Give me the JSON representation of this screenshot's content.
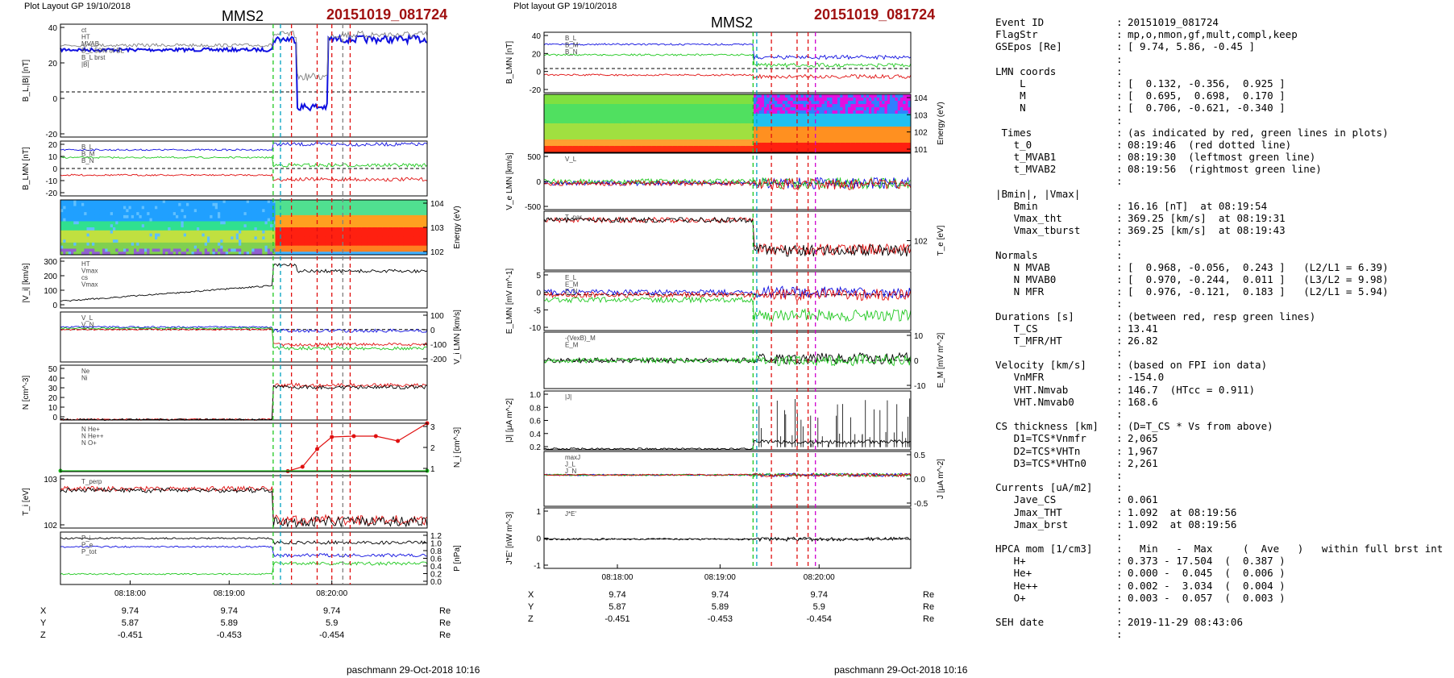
{
  "left_header": {
    "layout_label": "Plot Layout GP 19/10/2018",
    "spacecraft": "MMS2",
    "event": "20151019_081724",
    "credit": "paschmann 29-Oct-2018 10:16"
  },
  "middle_header": {
    "layout_label": "Plot layout GP 19/10/2018",
    "spacecraft": "MMS2",
    "event": "20151019_081724",
    "credit": "paschmann 29-Oct-2018 10:16"
  },
  "colors": {
    "blue": "#1010e0",
    "green": "#20c820",
    "red": "#e01010",
    "black": "#000000",
    "gray": "#808080",
    "magenta": "#d000d0",
    "cyan": "#00a0c0",
    "title_red": "#a01010"
  },
  "chart_data": [
    {
      "type": "line",
      "layout": "multi-panel",
      "x_ticks": [
        "08:18:00",
        "08:19:00",
        "08:20:00"
      ],
      "panels": [
        {
          "id": "bl",
          "ylabel": "B_L,|B| [nT]",
          "yticks": [
            "40",
            "20",
            "0",
            "-20"
          ],
          "ylim": [
            -30,
            45
          ],
          "legend": [
            "ct",
            "HT",
            "MVAB",
            "B_L 50% of BL",
            "B_L brst",
            "|B|"
          ],
          "series": [
            {
              "name": "B_L",
              "color": "blue",
              "start": 28,
              "end": 35,
              "dip": -10
            },
            {
              "name": "|B|",
              "color": "gray",
              "start": 31,
              "end": 38,
              "dip": 10
            }
          ]
        },
        {
          "id": "blmn",
          "ylabel": "B_LMN [nT]",
          "yticks": [
            "20",
            "10",
            "0",
            "-10",
            "-20"
          ],
          "ylim": [
            -25,
            25
          ],
          "legend": [
            "B_L",
            "B_M",
            "B_N"
          ],
          "series": [
            {
              "name": "B_L",
              "color": "blue",
              "start": 17,
              "end": 22
            },
            {
              "name": "B_M",
              "color": "green",
              "start": 10,
              "end": 3
            },
            {
              "name": "B_N",
              "color": "red",
              "start": -6,
              "end": -10
            }
          ]
        },
        {
          "id": "spec",
          "type": "heatmap",
          "ylabel": "Energy (eV)",
          "yticks": [
            "10^4",
            "10^3",
            "10^2"
          ]
        },
        {
          "id": "vi",
          "ylabel": "|V_i| [km/s]",
          "yticks": [
            "300",
            "200",
            "100",
            "0"
          ],
          "ylim": [
            0,
            380
          ],
          "legend": [
            "HT",
            "Vmax",
            "cs",
            "Vmax"
          ],
          "series": [
            {
              "name": "|V_i|",
              "color": "black",
              "start": 50,
              "end": 170,
              "jump": 330,
              "after": 280
            }
          ]
        },
        {
          "id": "vilmn",
          "ylabel": "V_i LMN [km/s]",
          "yticks": [
            "100",
            "0",
            "-100",
            "-200"
          ],
          "ylim": [
            -260,
            140
          ],
          "legend": [
            "V_L",
            "V_N"
          ],
          "series": [
            {
              "name": "V_L",
              "color": "blue",
              "start": 20,
              "end": -10
            },
            {
              "name": "V_N",
              "color": "red",
              "start": 0,
              "end": -120
            },
            {
              "name": "V_M",
              "color": "green",
              "start": 10,
              "end": -150
            }
          ]
        },
        {
          "id": "n",
          "ylabel": "N [cm^-3]",
          "yticks": [
            "50",
            "40",
            "30",
            "20",
            "10",
            "0"
          ],
          "ylim": [
            0,
            55
          ],
          "legend": [
            "Ne",
            "Ni"
          ],
          "series": [
            {
              "name": "Ne",
              "color": "red",
              "start": 0.5,
              "end": 35
            },
            {
              "name": "Ni",
              "color": "black",
              "start": 0.5,
              "end": 33
            }
          ]
        },
        {
          "id": "nhpca",
          "ylabel": "N_i [cm^-3]",
          "yticks": [
            "3",
            "2",
            "1"
          ],
          "ylim": [
            0,
            3
          ],
          "legend": [
            "N  He+",
            "N  He++",
            "N  O+"
          ],
          "series": [
            {
              "name": "N He++",
              "color": "red",
              "points": [
                [
                  0.62,
                  0.03
                ],
                [
                  0.66,
                  0.3
                ],
                [
                  0.7,
                  1.4
                ],
                [
                  0.74,
                  2.15
                ],
                [
                  0.8,
                  2.2
                ],
                [
                  0.86,
                  2.2
                ],
                [
                  0.92,
                  1.9
                ],
                [
                  1.0,
                  3.0
                ]
              ]
            },
            {
              "name": "N He+",
              "color": "green",
              "points": [
                [
                  0,
                  0.05
                ],
                [
                  1,
                  0.05
                ]
              ]
            }
          ]
        },
        {
          "id": "ti",
          "ylabel": "T_i [eV]",
          "yticks": [
            "10^3",
            "10^2"
          ],
          "legend": [
            "T_perp"
          ],
          "series": [
            {
              "name": "T_par",
              "color": "red",
              "start": 0.75,
              "end": 0.15
            },
            {
              "name": "T_perp",
              "color": "black",
              "start": 0.72,
              "end": 0.12
            }
          ]
        },
        {
          "id": "p",
          "ylabel": "P [nPa]",
          "yticks": [
            "1.2",
            "1.0",
            "0.8",
            "0.6",
            "0.4",
            "0.2",
            "0.0"
          ],
          "ylim": [
            0,
            1.25
          ],
          "legend": [
            "P_i",
            "P_e",
            "P_tot"
          ],
          "series": [
            {
              "name": "P_B",
              "color": "blue",
              "start": 0.9,
              "end": 0.7
            },
            {
              "name": "P_i",
              "color": "green",
              "start": 0.25,
              "end": 0.5
            },
            {
              "name": "P_tot",
              "color": "black",
              "start": 1.1,
              "end": 1.0
            }
          ]
        }
      ],
      "position_table": {
        "rows": [
          {
            "label": "X",
            "values": [
              "9.74",
              "9.74",
              "9.74"
            ],
            "unit": "Re"
          },
          {
            "label": "Y",
            "values": [
              "5.87",
              "5.89",
              "5.9"
            ],
            "unit": "Re"
          },
          {
            "label": "Z",
            "values": [
              "-0.451",
              "-0.453",
              "-0.454"
            ],
            "unit": "Re"
          }
        ]
      }
    },
    {
      "type": "line",
      "layout": "multi-panel",
      "x_ticks": [
        "08:18:00",
        "08:19:00",
        "08:20:00"
      ],
      "panels": [
        {
          "id": "bm",
          "ylabel": "B_LMN [nT]",
          "yticks": [
            "40",
            "20",
            "0",
            "-20"
          ],
          "ylim": [
            -30,
            45
          ],
          "legend": [
            "B_L",
            "B_M",
            "B_N"
          ],
          "series": [
            {
              "name": "B_L",
              "color": "blue",
              "start": 30,
              "end": 14
            },
            {
              "name": "B_M",
              "color": "green",
              "start": 17,
              "end": 4
            },
            {
              "name": "B_N",
              "color": "red",
              "start": -8,
              "end": -10
            }
          ]
        },
        {
          "id": "espec",
          "type": "heatmap",
          "ylabel": "Energy (eV)",
          "yticks": [
            "10^4",
            "10^3",
            "10^2",
            "10^1"
          ]
        },
        {
          "id": "ve",
          "ylabel": "V_e LMN [km/s]",
          "yticks": [
            "500",
            "0",
            "-500"
          ],
          "ylim": [
            -750,
            850
          ],
          "legend": [
            "V_L"
          ],
          "series": [
            {
              "name": "V_L",
              "color": "blue",
              "start": 0,
              "end": 0
            },
            {
              "name": "V_M",
              "color": "green",
              "start": 50,
              "end": 0
            },
            {
              "name": "V_N",
              "color": "red",
              "start": 0,
              "end": -30
            }
          ]
        },
        {
          "id": "te",
          "ylabel": "T_e [eV]",
          "yticks": [
            "10^2"
          ],
          "legend": [
            "T_par"
          ],
          "series": [
            {
              "name": "T_par",
              "color": "red",
              "start": 0.85,
              "end": 0.35
            },
            {
              "name": "T_perp",
              "color": "black",
              "start": 0.85,
              "end": 0.33
            }
          ]
        },
        {
          "id": "e",
          "ylabel": "E_LMN [mV m^-1]",
          "yticks": [
            "5",
            "0",
            "-5",
            "-10"
          ],
          "ylim": [
            -14,
            9
          ],
          "legend": [
            "E_L",
            "E_M",
            "E_N"
          ],
          "series": [
            {
              "name": "E_L",
              "color": "blue",
              "start": 1,
              "end": 1
            },
            {
              "name": "E_M",
              "color": "green",
              "start": -2,
              "end": -8
            },
            {
              "name": "E_N",
              "color": "red",
              "start": 0,
              "end": 0
            }
          ]
        },
        {
          "id": "em",
          "ylabel": "E_M [mV m^-2]",
          "yticks": [
            "10",
            "0",
            "-10"
          ],
          "ylim": [
            -15,
            15
          ],
          "legend": [
            "-(VexB)_M",
            "E_M"
          ],
          "series": [
            {
              "name": "-(VexB)_M",
              "color": "black",
              "start": 0,
              "end": 1
            },
            {
              "name": "E_M",
              "color": "green",
              "start": 0,
              "end": 0
            }
          ]
        },
        {
          "id": "j",
          "ylabel": "|J| [μA m^-2]",
          "yticks": [
            "1.0",
            "0.8",
            "0.6",
            "0.4",
            "0.2"
          ],
          "ylim": [
            0,
            1.1
          ],
          "legend": [
            "|J|"
          ],
          "series": [
            {
              "name": "|J|",
              "color": "black",
              "start": 0.02,
              "end": 0.15
            }
          ]
        },
        {
          "id": "jlmn",
          "ylabel": "J [μA m^-2]",
          "yticks": [
            "0.5",
            "0.0",
            "-0.5"
          ],
          "ylim": [
            -0.8,
            0.6
          ],
          "legend": [
            "maxJ",
            "J_L",
            "J_N"
          ],
          "series": [
            {
              "name": "J_L",
              "color": "blue",
              "start": 0,
              "end": 0
            },
            {
              "name": "J_M",
              "color": "green",
              "start": 0,
              "end": 0
            },
            {
              "name": "J_N",
              "color": "red",
              "start": 0,
              "end": 0
            }
          ]
        },
        {
          "id": "je",
          "ylabel": "J*E' [nW m^-3]",
          "yticks": [
            "1",
            "0",
            "-1"
          ],
          "ylim": [
            -1.4,
            1.5
          ],
          "legend": [
            "J*E'"
          ],
          "series": [
            {
              "name": "J*E'",
              "color": "black",
              "start": 0,
              "end": 0
            }
          ]
        }
      ],
      "position_table": {
        "rows": [
          {
            "label": "X",
            "values": [
              "9.74",
              "9.74",
              "9.74"
            ],
            "unit": "Re"
          },
          {
            "label": "Y",
            "values": [
              "5.87",
              "5.89",
              "5.9"
            ],
            "unit": "Re"
          },
          {
            "label": "Z",
            "values": [
              "-0.451",
              "-0.453",
              "-0.454"
            ],
            "unit": "Re"
          }
        ]
      }
    }
  ],
  "info": [
    [
      "Event ID",
      ":",
      "20151019_081724"
    ],
    [
      "FlagStr",
      ":",
      "mp,o,nmon,gf,mult,compl,keep"
    ],
    [
      "GSEpos [Re]",
      ":",
      "[ 9.74, 5.86, -0.45 ]"
    ],
    [
      "",
      ":",
      ""
    ],
    [
      "LMN coords",
      ":",
      ""
    ],
    [
      "    L",
      ":",
      "[  0.132, -0.356,  0.925 ]"
    ],
    [
      "    M",
      ":",
      "[  0.695,  0.698,  0.170 ]"
    ],
    [
      "    N",
      ":",
      "[  0.706, -0.621, -0.340 ]"
    ],
    [
      "",
      ":",
      ""
    ],
    [
      " Times",
      ":",
      "(as indicated by red, green lines in plots)"
    ],
    [
      "   t_0",
      ":",
      "08:19:46  (red dotted line)"
    ],
    [
      "   t_MVAB1",
      ":",
      "08:19:30  (leftmost green line)"
    ],
    [
      "   t_MVAB2",
      ":",
      "08:19:56  (rightmost green line)"
    ],
    [
      "",
      ":",
      ""
    ],
    [
      "|Bmin|, |Vmax|",
      "",
      ""
    ],
    [
      "   Bmin",
      ":",
      "16.16 [nT]  at 08:19:54"
    ],
    [
      "   Vmax_tht",
      ":",
      "369.25 [km/s]  at 08:19:31"
    ],
    [
      "   Vmax_tburst",
      ":",
      "369.25 [km/s]  at 08:19:43"
    ],
    [
      "",
      ":",
      ""
    ],
    [
      "Normals",
      ":",
      ""
    ],
    [
      "   N MVAB",
      ":",
      "[  0.968, -0.056,  0.243 ]   (L2/L1 = 6.39)"
    ],
    [
      "   N MVAB0",
      ":",
      "[  0.970, -0.244,  0.011 ]   (L3/L2 = 9.98)"
    ],
    [
      "   N MFR",
      ":",
      "[  0.976, -0.121,  0.183 ]   (L2/L1 = 5.94)"
    ],
    [
      "",
      ":",
      ""
    ],
    [
      "Durations [s]",
      ":",
      "(between red, resp green lines)"
    ],
    [
      "   T_CS",
      ":",
      "13.41"
    ],
    [
      "   T_MFR/HT",
      ":",
      "26.82"
    ],
    [
      "",
      ":",
      ""
    ],
    [
      "Velocity [km/s]",
      ":",
      "(based on FPI ion data)"
    ],
    [
      "   VnMFR",
      ":",
      "-154.0"
    ],
    [
      "   VHT.Nmvab",
      ":",
      "146.7  (HTcc = 0.911)"
    ],
    [
      "   VHT.Nmvab0",
      ":",
      "168.6"
    ],
    [
      "",
      ":",
      ""
    ],
    [
      "CS thickness [km]",
      ":",
      "(D=T_CS * Vs from above)"
    ],
    [
      "   D1=TCS*Vnmfr",
      ":",
      "2,065"
    ],
    [
      "   D2=TCS*VHTn",
      ":",
      "1,967"
    ],
    [
      "   D3=TCS*VHTn0",
      ":",
      "2,261"
    ],
    [
      "",
      ":",
      ""
    ],
    [
      "Currents [uA/m2]",
      ":",
      ""
    ],
    [
      "   Jave_CS",
      ":",
      "0.061"
    ],
    [
      "   Jmax_THT",
      ":",
      "1.092  at 08:19:56"
    ],
    [
      "   Jmax_brst",
      ":",
      "1.092  at 08:19:56"
    ],
    [
      "",
      ":",
      ""
    ],
    [
      "HPCA mom [1/cm3]",
      ":",
      "  Min   -  Max     (  Ave   )   within full brst int"
    ],
    [
      "   H+",
      ":",
      "0.373 - 17.504  (  0.387 )"
    ],
    [
      "   He+",
      ":",
      "0.000 -  0.045  (  0.006 )"
    ],
    [
      "   He++",
      ":",
      "0.002 -  3.034  (  0.004 )"
    ],
    [
      "   O+",
      ":",
      "0.003 -  0.057  (  0.003 )"
    ],
    [
      "",
      ":",
      ""
    ],
    [
      "SEH date",
      ":",
      "2019-11-29 08:43:06"
    ],
    [
      "",
      ":",
      ""
    ]
  ]
}
